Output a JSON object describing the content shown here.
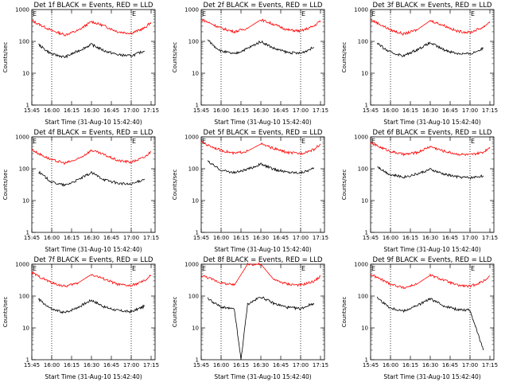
{
  "chart_data": [
    {
      "type": "line",
      "title": "Det 1f BLACK = Events, RED = LLD",
      "xlabel": "Start Time (31-Aug-10 15:42:40)",
      "ylabel": "Counts/sec",
      "y_scale": "log",
      "ylim": [
        1,
        1000
      ],
      "x_ticks": [
        "15:45",
        "16:00",
        "16:15",
        "16:30",
        "16:45",
        "17:00",
        "17:15"
      ],
      "y_ticks": [
        "1",
        "10",
        "100",
        "1000"
      ],
      "marker_lines": [
        "16:00",
        "17:00"
      ],
      "markers": [
        {
          "label": "E",
          "x": "15:45"
        },
        {
          "label": "E",
          "x": "17:00"
        }
      ],
      "series": [
        {
          "color": "#ff0000",
          "x": [
            "15:45",
            "15:50",
            "16:00",
            "16:10",
            "16:20",
            "16:30",
            "16:40",
            "16:50",
            "17:00",
            "17:10",
            "17:15"
          ],
          "values": [
            450,
            350,
            220,
            160,
            220,
            420,
            300,
            200,
            180,
            260,
            400
          ]
        },
        {
          "color": "#000000",
          "x": [
            "15:50",
            "15:55",
            "16:00",
            "16:10",
            "16:20",
            "16:30",
            "16:40",
            "16:50",
            "17:00",
            "17:10"
          ],
          "values": [
            80,
            55,
            40,
            32,
            50,
            80,
            50,
            38,
            35,
            50
          ]
        }
      ]
    },
    {
      "type": "line",
      "title": "Det 2f BLACK = Events, RED = LLD",
      "xlabel": "Start Time (31-Aug-10 15:42:40)",
      "ylabel": "Counts/sec",
      "y_scale": "log",
      "ylim": [
        1,
        1000
      ],
      "x_ticks": [
        "15:45",
        "16:00",
        "16:15",
        "16:30",
        "16:45",
        "17:00",
        "17:15"
      ],
      "y_ticks": [
        "1",
        "10",
        "100",
        "1000"
      ],
      "marker_lines": [
        "16:00",
        "17:00"
      ],
      "markers": [
        {
          "label": "E",
          "x": "15:45"
        },
        {
          "label": "E",
          "x": "17:00"
        }
      ],
      "series": [
        {
          "color": "#ff0000",
          "x": [
            "15:45",
            "15:50",
            "16:00",
            "16:10",
            "16:20",
            "16:30",
            "16:40",
            "16:50",
            "17:00",
            "17:10",
            "17:15"
          ],
          "values": [
            500,
            400,
            260,
            200,
            260,
            480,
            340,
            230,
            210,
            300,
            450
          ]
        },
        {
          "color": "#000000",
          "x": [
            "15:50",
            "15:55",
            "16:00",
            "16:10",
            "16:20",
            "16:30",
            "16:40",
            "16:50",
            "17:00",
            "17:10"
          ],
          "values": [
            110,
            70,
            50,
            40,
            60,
            100,
            60,
            45,
            42,
            65
          ]
        }
      ]
    },
    {
      "type": "line",
      "title": "Det 3f BLACK = Events, RED = LLD",
      "xlabel": "Start Time (31-Aug-10 15:42:40)",
      "ylabel": "Counts/sec",
      "y_scale": "log",
      "ylim": [
        1,
        1000
      ],
      "x_ticks": [
        "15:45",
        "16:00",
        "16:15",
        "16:30",
        "16:45",
        "17:00",
        "17:15"
      ],
      "y_ticks": [
        "1",
        "10",
        "100",
        "1000"
      ],
      "marker_lines": [
        "16:00",
        "17:00"
      ],
      "markers": [
        {
          "label": "E",
          "x": "15:45"
        },
        {
          "label": "E",
          "x": "17:00"
        }
      ],
      "series": [
        {
          "color": "#ff0000",
          "x": [
            "15:45",
            "15:50",
            "16:00",
            "16:10",
            "16:20",
            "16:30",
            "16:40",
            "16:50",
            "17:00",
            "17:10",
            "17:15"
          ],
          "values": [
            480,
            380,
            230,
            170,
            230,
            450,
            320,
            210,
            190,
            280,
            420
          ]
        },
        {
          "color": "#000000",
          "x": [
            "15:50",
            "15:55",
            "16:00",
            "16:10",
            "16:20",
            "16:30",
            "16:40",
            "16:50",
            "17:00",
            "17:10"
          ],
          "values": [
            90,
            60,
            45,
            35,
            55,
            90,
            55,
            42,
            40,
            60
          ]
        }
      ]
    },
    {
      "type": "line",
      "title": "Det 4f BLACK = Events, RED = LLD",
      "xlabel": "Start Time (31-Aug-10 15:42:40)",
      "ylabel": "Counts/sec",
      "y_scale": "log",
      "ylim": [
        1,
        1000
      ],
      "x_ticks": [
        "15:45",
        "16:00",
        "16:15",
        "16:30",
        "16:45",
        "17:00",
        "17:15"
      ],
      "y_ticks": [
        "1",
        "10",
        "100",
        "1000"
      ],
      "marker_lines": [
        "16:00",
        "17:00"
      ],
      "markers": [
        {
          "label": "E",
          "x": "15:45"
        },
        {
          "label": "E",
          "x": "17:00"
        }
      ],
      "series": [
        {
          "color": "#ff0000",
          "x": [
            "15:45",
            "15:50",
            "16:00",
            "16:10",
            "16:20",
            "16:30",
            "16:40",
            "16:50",
            "17:00",
            "17:10",
            "17:15"
          ],
          "values": [
            400,
            300,
            190,
            150,
            200,
            380,
            270,
            180,
            160,
            230,
            350
          ]
        },
        {
          "color": "#000000",
          "x": [
            "15:50",
            "15:55",
            "16:00",
            "16:10",
            "16:20",
            "16:30",
            "16:40",
            "16:50",
            "17:00",
            "17:10"
          ],
          "values": [
            80,
            55,
            38,
            30,
            45,
            75,
            45,
            35,
            32,
            48
          ]
        }
      ]
    },
    {
      "type": "line",
      "title": "Det 5f BLACK = Events, RED = LLD",
      "xlabel": "Start Time (31-Aug-10 15:42:40)",
      "ylabel": "Counts/sec",
      "y_scale": "log",
      "ylim": [
        1,
        1000
      ],
      "x_ticks": [
        "15:45",
        "16:00",
        "16:15",
        "16:30",
        "16:45",
        "17:00",
        "17:15"
      ],
      "y_ticks": [
        "1",
        "10",
        "100",
        "1000"
      ],
      "marker_lines": [
        "16:00",
        "17:00"
      ],
      "markers": [
        {
          "label": "E",
          "x": "15:45"
        },
        {
          "label": "E",
          "x": "17:00"
        }
      ],
      "series": [
        {
          "color": "#ff0000",
          "x": [
            "15:45",
            "15:50",
            "16:00",
            "16:10",
            "16:20",
            "16:30",
            "16:40",
            "16:50",
            "17:00",
            "17:10",
            "17:15"
          ],
          "values": [
            700,
            550,
            380,
            300,
            360,
            600,
            430,
            320,
            300,
            400,
            600
          ]
        },
        {
          "color": "#000000",
          "x": [
            "15:50",
            "15:55",
            "16:00",
            "16:10",
            "16:20",
            "16:30",
            "16:40",
            "16:50",
            "17:00",
            "17:10"
          ],
          "values": [
            170,
            120,
            90,
            75,
            95,
            140,
            95,
            78,
            75,
            100
          ]
        }
      ]
    },
    {
      "type": "line",
      "title": "Det 6f BLACK = Events, RED = LLD",
      "xlabel": "Start Time (31-Aug-10 15:42:40)",
      "ylabel": "Counts/sec",
      "y_scale": "log",
      "ylim": [
        1,
        1000
      ],
      "x_ticks": [
        "15:45",
        "16:00",
        "16:15",
        "16:30",
        "16:45",
        "17:00",
        "17:15"
      ],
      "y_ticks": [
        "1",
        "10",
        "100",
        "1000"
      ],
      "marker_lines": [
        "16:00",
        "17:00"
      ],
      "markers": [
        {
          "label": "E",
          "x": "15:45"
        },
        {
          "label": "E",
          "x": "17:00"
        }
      ],
      "series": [
        {
          "color": "#ff0000",
          "x": [
            "15:45",
            "15:50",
            "16:00",
            "16:10",
            "16:20",
            "16:30",
            "16:40",
            "16:50",
            "17:00",
            "17:10",
            "17:15"
          ],
          "values": [
            650,
            520,
            350,
            280,
            320,
            500,
            360,
            290,
            270,
            330,
            480
          ]
        },
        {
          "color": "#000000",
          "x": [
            "15:50",
            "15:55",
            "16:00",
            "16:10",
            "16:20",
            "16:30",
            "16:40",
            "16:50",
            "17:00",
            "17:10"
          ],
          "values": [
            120,
            85,
            65,
            55,
            68,
            95,
            68,
            56,
            52,
            60
          ]
        }
      ]
    },
    {
      "type": "line",
      "title": "Det 7f BLACK = Events, RED = LLD",
      "xlabel": "Start Time (31-Aug-10 15:42:40)",
      "ylabel": "Counts/sec",
      "y_scale": "log",
      "ylim": [
        1,
        1000
      ],
      "x_ticks": [
        "15:45",
        "16:00",
        "16:15",
        "16:30",
        "16:45",
        "17:00",
        "17:15"
      ],
      "y_ticks": [
        "1",
        "10",
        "100",
        "1000"
      ],
      "marker_lines": [
        "16:00",
        "17:00"
      ],
      "markers": [
        {
          "label": "E",
          "x": "15:45"
        },
        {
          "label": "E",
          "x": "17:00"
        }
      ],
      "series": [
        {
          "color": "#ff0000",
          "x": [
            "15:45",
            "15:50",
            "16:00",
            "16:10",
            "16:20",
            "16:30",
            "16:40",
            "16:50",
            "17:00",
            "17:10",
            "17:15"
          ],
          "values": [
            550,
            420,
            260,
            200,
            260,
            480,
            340,
            230,
            210,
            300,
            450
          ]
        },
        {
          "color": "#000000",
          "x": [
            "15:50",
            "15:55",
            "16:00",
            "16:10",
            "16:20",
            "16:30",
            "16:40",
            "16:50",
            "17:00",
            "17:10"
          ],
          "values": [
            80,
            55,
            38,
            30,
            45,
            75,
            45,
            35,
            32,
            48
          ]
        }
      ]
    },
    {
      "type": "line",
      "title": "Det 8f BLACK = Events, RED = LLD",
      "xlabel": "Start Time (31-Aug-10 15:42:40)",
      "ylabel": "Counts/sec",
      "y_scale": "log",
      "ylim": [
        1,
        1000
      ],
      "x_ticks": [
        "15:45",
        "16:00",
        "16:15",
        "16:30",
        "16:45",
        "17:00",
        "17:15"
      ],
      "y_ticks": [
        "1",
        "10",
        "100",
        "1000"
      ],
      "marker_lines": [
        "16:00",
        "17:00"
      ],
      "markers": [
        {
          "label": "E",
          "x": "15:45"
        },
        {
          "label": "E",
          "x": "17:00"
        }
      ],
      "series": [
        {
          "color": "#ff0000",
          "x": [
            "15:45",
            "15:50",
            "16:00",
            "16:10",
            "16:20",
            "16:30",
            "16:40",
            "16:50",
            "17:00",
            "17:10",
            "17:15"
          ],
          "values": [
            450,
            380,
            260,
            220,
            1000,
            1000,
            320,
            240,
            220,
            290,
            420
          ]
        },
        {
          "color": "#000000",
          "x": [
            "15:50",
            "15:55",
            "16:00",
            "16:10",
            "16:15",
            "16:20",
            "16:30",
            "16:40",
            "16:50",
            "17:00",
            "17:10"
          ],
          "values": [
            85,
            60,
            45,
            38,
            1,
            55,
            95,
            58,
            44,
            40,
            60
          ]
        }
      ]
    },
    {
      "type": "line",
      "title": "Det 9f BLACK = Events, RED = LLD",
      "xlabel": "Start Time (31-Aug-10 15:42:40)",
      "ylabel": "Counts/sec",
      "y_scale": "log",
      "ylim": [
        1,
        1000
      ],
      "x_ticks": [
        "15:45",
        "16:00",
        "16:15",
        "16:30",
        "16:45",
        "17:00",
        "17:15"
      ],
      "y_ticks": [
        "1",
        "10",
        "100",
        "1000"
      ],
      "marker_lines": [
        "16:00",
        "17:00"
      ],
      "markers": [
        {
          "label": "E",
          "x": "15:45"
        },
        {
          "label": "E",
          "x": "17:00"
        }
      ],
      "series": [
        {
          "color": "#ff0000",
          "x": [
            "15:45",
            "15:50",
            "16:00",
            "16:10",
            "16:20",
            "16:30",
            "16:40",
            "16:50",
            "17:00",
            "17:10",
            "17:15"
          ],
          "values": [
            480,
            380,
            240,
            180,
            240,
            450,
            320,
            220,
            200,
            290,
            430
          ]
        },
        {
          "color": "#000000",
          "x": [
            "15:50",
            "15:55",
            "16:00",
            "16:10",
            "16:20",
            "16:30",
            "16:40",
            "16:50",
            "17:00",
            "17:10"
          ],
          "values": [
            90,
            60,
            42,
            34,
            50,
            82,
            50,
            38,
            36,
            2
          ]
        }
      ]
    }
  ]
}
